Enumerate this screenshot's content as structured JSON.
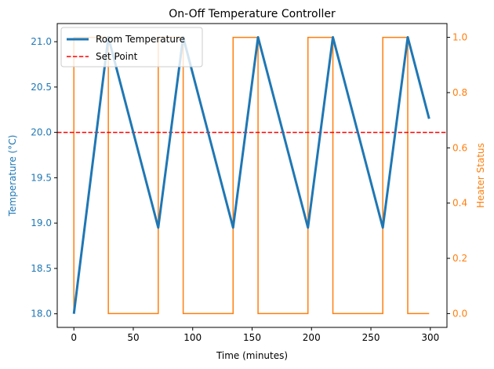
{
  "chart_data": {
    "type": "line",
    "title": "On-Off Temperature Controller",
    "xlabel": "Time (minutes)",
    "ylabel_left": "Temperature (°C)",
    "ylabel_right": "Heater Status",
    "xlim": [
      -14,
      314
    ],
    "ylim_left": [
      17.85,
      21.2
    ],
    "ylim_right": [
      -0.05,
      1.05
    ],
    "xticks": [
      0,
      50,
      100,
      150,
      200,
      250,
      300
    ],
    "yticks_left": [
      18.0,
      18.5,
      19.0,
      19.5,
      20.0,
      20.5,
      21.0
    ],
    "yticks_right": [
      0.0,
      0.2,
      0.4,
      0.6,
      0.8,
      1.0
    ],
    "xtick_labels": [
      "0",
      "50",
      "100",
      "150",
      "200",
      "250",
      "300"
    ],
    "ytick_left_labels": [
      "18.0",
      "18.5",
      "19.0",
      "19.5",
      "20.0",
      "20.5",
      "21.0"
    ],
    "ytick_right_labels": [
      "0.0",
      "0.2",
      "0.4",
      "0.6",
      "0.8",
      "1.0"
    ],
    "grid": false,
    "legend_placement": "top-left",
    "series": [
      {
        "name": "Room Temperature",
        "axis": "left",
        "color": "#1f77b4",
        "style": "solid-thick",
        "x": [
          0,
          29,
          71,
          92,
          134,
          155,
          197,
          218,
          260,
          281,
          299
        ],
        "y": [
          18.0,
          21.05,
          18.95,
          21.05,
          18.95,
          21.05,
          18.95,
          21.05,
          18.95,
          21.05,
          20.15
        ]
      },
      {
        "name": "Set Point",
        "axis": "left",
        "color": "#ff0000",
        "style": "dashed",
        "y_constant": 20.0
      },
      {
        "name": "Heater Status",
        "axis": "right",
        "color": "#ff7f0e",
        "style": "step",
        "x": [
          0,
          0,
          29,
          29,
          71,
          71,
          92,
          92,
          134,
          134,
          155,
          155,
          197,
          197,
          218,
          218,
          260,
          260,
          281,
          281,
          299
        ],
        "y": [
          0,
          1,
          1,
          0,
          0,
          1,
          1,
          0,
          0,
          1,
          1,
          0,
          0,
          1,
          1,
          0,
          0,
          1,
          1,
          0,
          0
        ]
      }
    ]
  }
}
